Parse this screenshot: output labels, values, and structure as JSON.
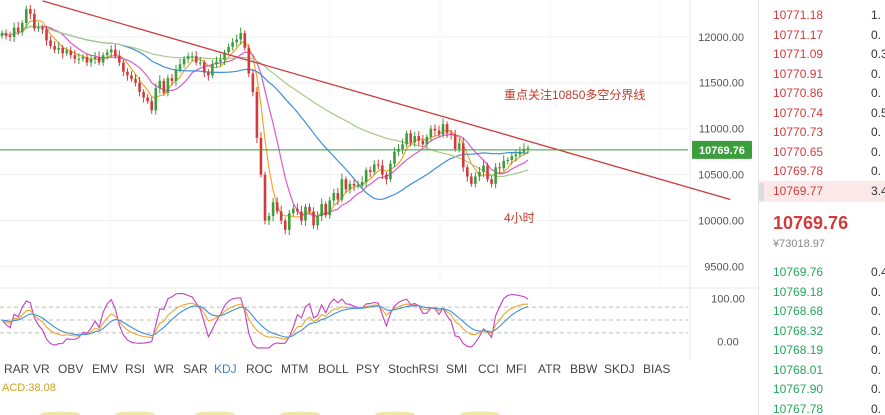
{
  "chart_data": [
    {
      "type": "line",
      "pane": "price",
      "subtype": "candlestick",
      "ylim": [
        9300,
        12400
      ],
      "y_ticks": [
        "12000.00",
        "11500.00",
        "11000.00",
        "10500.00",
        "10000.00",
        "9500.00"
      ],
      "y_tick_values": [
        12000,
        11500,
        11000,
        10500,
        10000,
        9500
      ],
      "series": [
        {
          "kind": "close",
          "values": [
            12040,
            12010,
            12000,
            12100,
            12050,
            12150,
            12300,
            12250,
            12090,
            12100,
            12080,
            11960,
            11900,
            11860,
            11880,
            11820,
            11850,
            11800,
            11760,
            11760,
            11780,
            11720,
            11760,
            11780,
            11720,
            11800,
            11830,
            11860,
            11790,
            11720,
            11620,
            11580,
            11540,
            11500,
            11400,
            11340,
            11300,
            11200,
            11440,
            11520,
            11390,
            11550,
            11520,
            11640,
            11700,
            11760,
            11790,
            11790,
            11720,
            11720,
            11610,
            11580,
            11700,
            11730,
            11750,
            11830,
            11890,
            11940,
            11970,
            12040,
            11880,
            11600,
            11400,
            10900,
            10500,
            10000,
            10050,
            10200,
            10100,
            10000,
            9900,
            10080,
            10130,
            10100,
            10000,
            10150,
            10100,
            9950,
            10050,
            10180,
            10060,
            10220,
            10300,
            10230,
            10450,
            10340,
            10400,
            10380,
            10380,
            10420,
            10550,
            10530,
            10610,
            10600,
            10500,
            10450,
            10620,
            10750,
            10780,
            10830,
            10950,
            10850,
            10920,
            10870,
            10830,
            10910,
            11000,
            10980,
            10940,
            11050,
            10950,
            10940,
            10780,
            10840,
            10580,
            10480,
            10400,
            10480,
            10530,
            10600,
            10450,
            10400,
            10580,
            10570,
            10650,
            10660,
            10700,
            10720,
            10750,
            10780,
            10790
          ]
        }
      ],
      "annotations": [
        {
          "text": "重点关注10850多空分界线",
          "x": "upper-right",
          "color": "#c0392b"
        },
        {
          "text": "4小时",
          "color": "#c0392b"
        }
      ],
      "horizontal_line": {
        "value": 10769.76,
        "label": "10769.76",
        "color": "#3b9d3b"
      },
      "trendline": {
        "from": [
          10,
          12390
        ],
        "to": [
          180,
          10230
        ],
        "color": "#cc3b3b"
      },
      "ma_colors": [
        "#f0a62a",
        "#d95bd0",
        "#3f8fd8",
        "#a8c987"
      ],
      "candle_colors": {
        "up": "#3b9d3b",
        "down": "#d23b3b"
      }
    },
    {
      "type": "line",
      "pane": "KDJ",
      "ylim": [
        -20,
        120
      ],
      "y_ticks": [
        "100.00",
        "0.00"
      ],
      "y_tick_values": [
        100,
        0
      ],
      "reference_lines": [
        80,
        50,
        20
      ],
      "series_colors": [
        "#c33ec3",
        "#f0a62a",
        "#3f8fd8",
        "#a8c987"
      ],
      "indicator_label": "ACD:38.08"
    }
  ],
  "indicator_tabs": [
    "RAR",
    "VR",
    "OBV",
    "EMV",
    "RSI",
    "WR",
    "SAR",
    "KDJ",
    "ROC",
    "MTM",
    "BOLL",
    "PSY",
    "StochRSI",
    "SMI",
    "CCI",
    "MFI",
    "ATR",
    "BBW",
    "SKDJ",
    "BIAS"
  ],
  "active_tab": "KDJ",
  "indicator_value": "ACD:38.08",
  "price_tag": "10769.76",
  "annotation_main": "重点关注10850多空分界线",
  "annotation_timeframe": "4小时",
  "orderbook": {
    "asks": [
      {
        "price": "10771.18",
        "qty": "1."
      },
      {
        "price": "10771.17",
        "qty": "0."
      },
      {
        "price": "10771.09",
        "qty": "0.3"
      },
      {
        "price": "10770.91",
        "qty": "0."
      },
      {
        "price": "10770.86",
        "qty": "0."
      },
      {
        "price": "10770.74",
        "qty": "0.5"
      },
      {
        "price": "10770.73",
        "qty": "0."
      },
      {
        "price": "10770.65",
        "qty": "0."
      },
      {
        "price": "10769.78",
        "qty": "0."
      },
      {
        "price": "10769.77",
        "qty": "3.4"
      }
    ],
    "last_price": "10769.76",
    "fiat_price": "¥73018.97",
    "bids": [
      {
        "price": "10769.76",
        "qty": "0.4"
      },
      {
        "price": "10769.18",
        "qty": "0."
      },
      {
        "price": "10768.68",
        "qty": "0."
      },
      {
        "price": "10768.32",
        "qty": "0."
      },
      {
        "price": "10768.19",
        "qty": "0."
      },
      {
        "price": "10768.01",
        "qty": "0."
      },
      {
        "price": "10767.90",
        "qty": "0."
      },
      {
        "price": "10767.78",
        "qty": "0."
      }
    ],
    "colors": {
      "ask": "#d23b3b",
      "bid": "#26a65b"
    }
  }
}
